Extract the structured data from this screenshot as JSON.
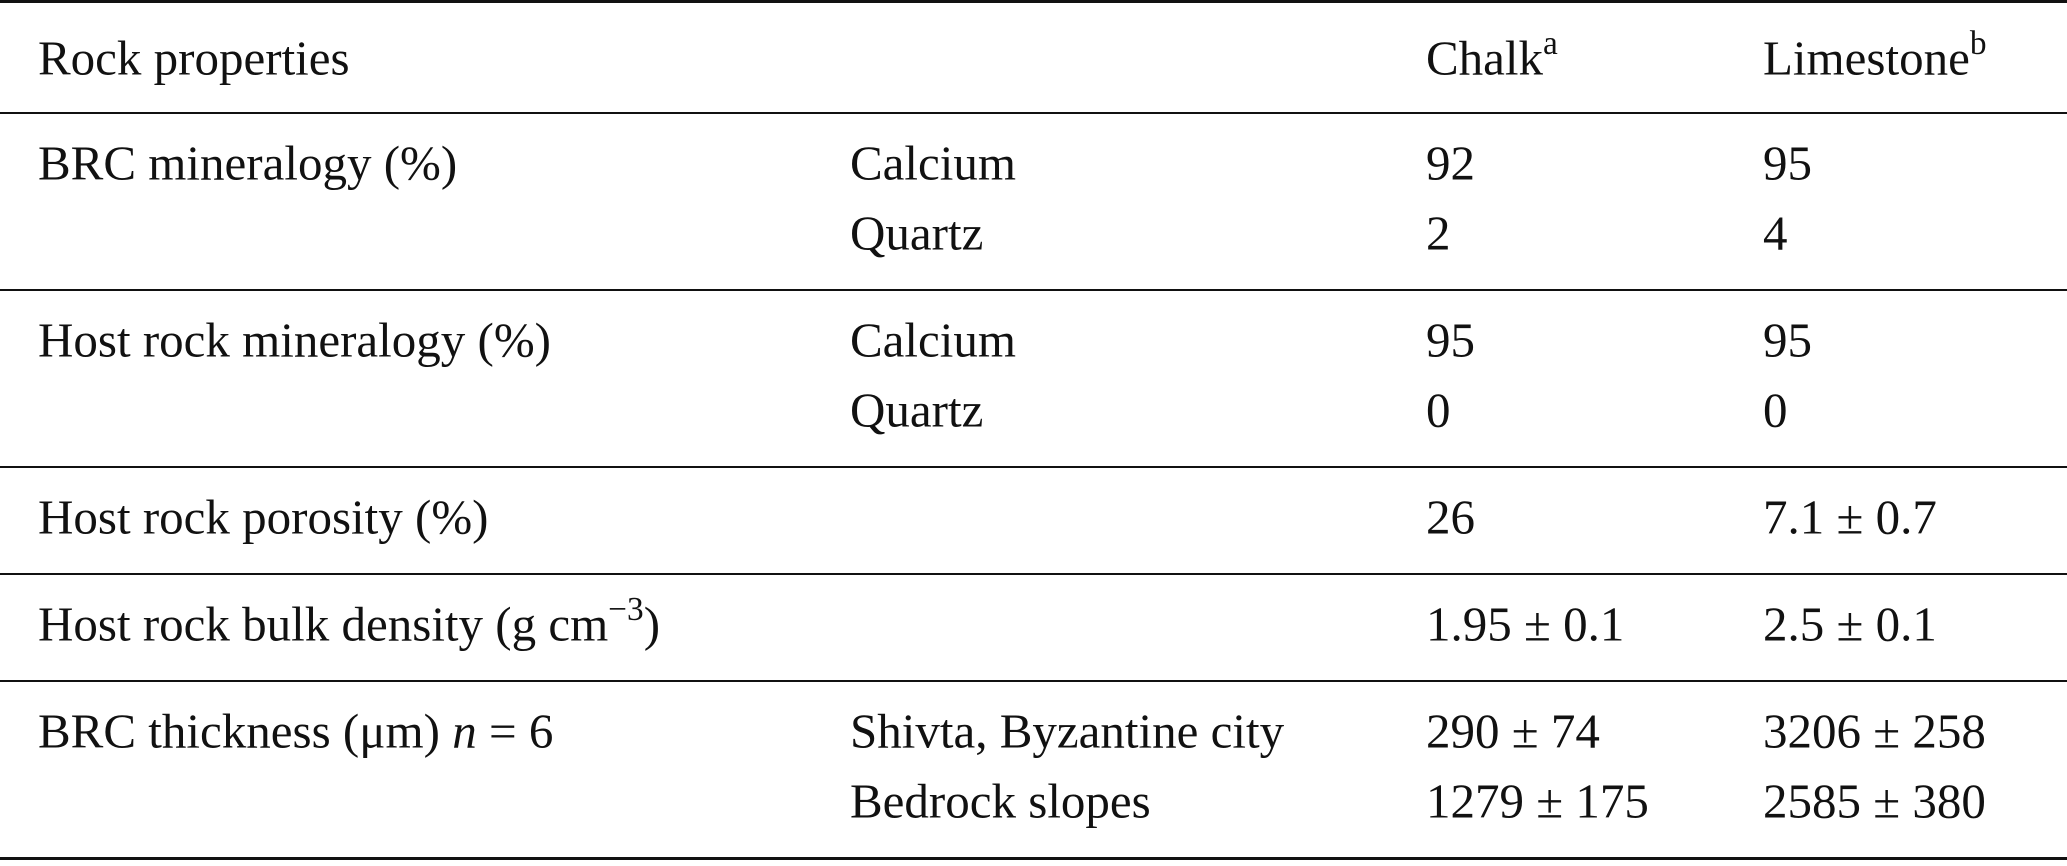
{
  "header": {
    "property": "Rock properties",
    "columns": [
      {
        "name": "Chalk",
        "note": "a"
      },
      {
        "name": "Limestone",
        "note": "b"
      }
    ]
  },
  "groups": [
    {
      "label": [
        {
          "text": "BRC mineralogy (%)"
        }
      ],
      "rows": [
        {
          "sublabel": "Calcium",
          "values": [
            92,
            95
          ]
        },
        {
          "sublabel": "Quartz",
          "values": [
            2,
            4
          ]
        }
      ]
    },
    {
      "label": [
        {
          "text": "Host rock mineralogy (%)"
        }
      ],
      "rows": [
        {
          "sublabel": "Calcium",
          "values": [
            95,
            95
          ]
        },
        {
          "sublabel": "Quartz",
          "values": [
            0,
            0
          ]
        }
      ]
    },
    {
      "label": [
        {
          "text": "Host rock porosity (%)"
        }
      ],
      "rows": [
        {
          "values": [
            26,
            "7.1 ± 0.7"
          ]
        }
      ]
    },
    {
      "label": [
        {
          "text": "Host rock bulk density (g cm"
        },
        {
          "text": "−3",
          "style": "sup"
        },
        {
          "text": ")"
        }
      ],
      "rows": [
        {
          "values": [
            "1.95 ± 0.1",
            "2.5 ± 0.1"
          ]
        }
      ]
    },
    {
      "label": [
        {
          "text": "BRC thickness (μm) "
        },
        {
          "text": "n",
          "style": "italic"
        },
        {
          "text": " = 6"
        }
      ],
      "rows": [
        {
          "sublabel": "Shivta, Byzantine city",
          "values": [
            "290 ± 74",
            "3206 ± 258"
          ]
        },
        {
          "sublabel": "Bedrock slopes",
          "values": [
            "1279 ± 175",
            "2585 ± 380"
          ]
        }
      ]
    }
  ]
}
